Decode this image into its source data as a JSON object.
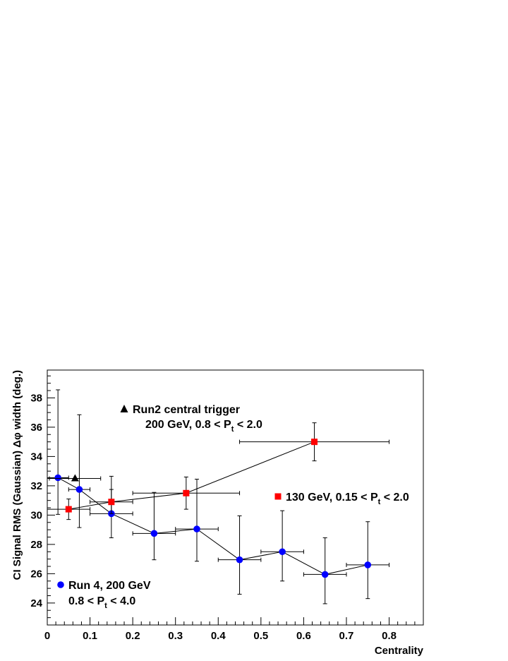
{
  "chart_data": {
    "type": "scatter",
    "xlabel": "Centrality",
    "ylabel": "CI Signal RMS (Gaussian) Δφ width (deg.)",
    "xlim": [
      0,
      0.88
    ],
    "ylim": [
      22.5,
      39.9
    ],
    "x_ticks": [
      0,
      0.1,
      0.2,
      0.3,
      0.4,
      0.5,
      0.6,
      0.7,
      0.8
    ],
    "x_tick_labels": [
      "0",
      "0.1",
      "0.2",
      "0.3",
      "0.4",
      "0.5",
      "0.6",
      "0.7",
      "0.8"
    ],
    "y_ticks": [
      24,
      26,
      28,
      30,
      32,
      34,
      36,
      38
    ],
    "y_tick_labels": [
      "24",
      "26",
      "28",
      "30",
      "32",
      "34",
      "36",
      "38"
    ],
    "grid": false,
    "series": [
      {
        "name": "Run 4, 200 GeV",
        "name_line2": "0.8 < P",
        "name_line2_sub": "t",
        "name_line2_tail": " < 4.0",
        "marker": "circle",
        "color": "#0000ff",
        "connected": true,
        "points": [
          {
            "x": 0.025,
            "y": 32.55,
            "xerr": 0.025,
            "yerr_low": 2.5,
            "yerr_high": 6.0
          },
          {
            "x": 0.075,
            "y": 31.75,
            "xerr": 0.025,
            "yerr_low": 2.6,
            "yerr_high": 5.1
          },
          {
            "x": 0.15,
            "y": 30.1,
            "xerr": 0.05,
            "yerr_low": 1.65,
            "yerr_high": 1.65
          },
          {
            "x": 0.25,
            "y": 28.75,
            "xerr": 0.05,
            "yerr_low": 1.8,
            "yerr_high": 2.8
          },
          {
            "x": 0.35,
            "y": 29.05,
            "xerr": 0.05,
            "yerr_low": 2.2,
            "yerr_high": 3.4
          },
          {
            "x": 0.45,
            "y": 26.95,
            "xerr": 0.05,
            "yerr_low": 2.35,
            "yerr_high": 3.0
          },
          {
            "x": 0.55,
            "y": 27.5,
            "xerr": 0.05,
            "yerr_low": 2.0,
            "yerr_high": 2.8
          },
          {
            "x": 0.65,
            "y": 25.95,
            "xerr": 0.05,
            "yerr_low": 2.0,
            "yerr_high": 2.5
          },
          {
            "x": 0.75,
            "y": 26.6,
            "xerr": 0.05,
            "yerr_low": 2.3,
            "yerr_high": 2.95
          }
        ]
      },
      {
        "name": "130 GeV, 0.15 < P",
        "name_sub": "t",
        "name_tail": " < 2.0",
        "marker": "square",
        "color": "#ff0000",
        "connected": true,
        "points": [
          {
            "x": 0.05,
            "y": 30.4,
            "xerr": 0.05,
            "yerr_low": 0.7,
            "yerr_high": 0.7
          },
          {
            "x": 0.15,
            "y": 30.9,
            "xerr": 0.05,
            "yerr_low": 0.8,
            "yerr_high": 1.75
          },
          {
            "x": 0.325,
            "y": 31.5,
            "xerr": 0.125,
            "yerr_low": 1.1,
            "yerr_high": 1.1
          },
          {
            "x": 0.625,
            "y": 35.0,
            "xerr": 0.175,
            "yerr_low": 1.3,
            "yerr_high": 1.3
          }
        ]
      },
      {
        "name": "Run2 central trigger",
        "name_line2": "200 GeV, 0.8 < P",
        "name_line2_sub": "t",
        "name_line2_tail": " < 2.0",
        "marker": "triangle",
        "color": "#000000",
        "connected": false,
        "points": [
          {
            "x": 0.065,
            "y": 32.5,
            "xerr": 0.06,
            "yerr_low": 0,
            "yerr_high": 0
          }
        ]
      }
    ]
  }
}
